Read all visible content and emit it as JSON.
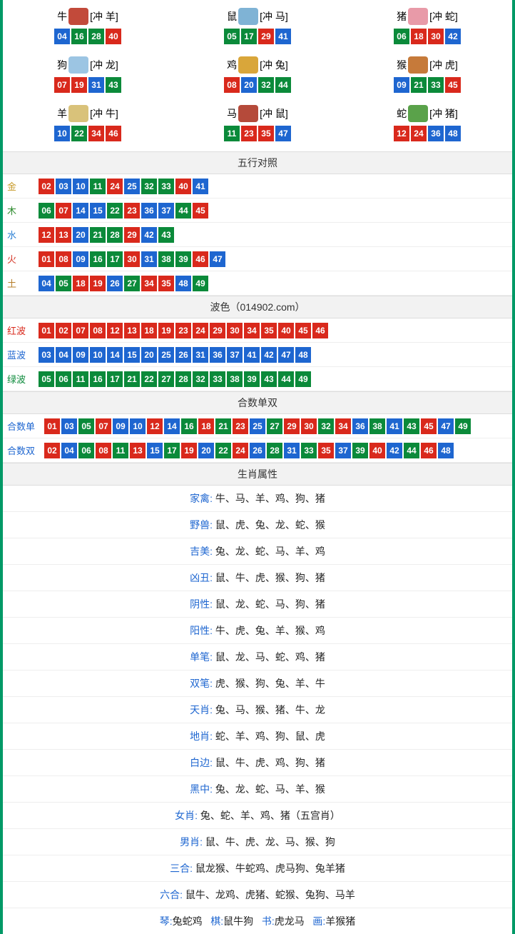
{
  "colors": {
    "red": "#d9291c",
    "blue": "#1e66d0",
    "green": "#0b8a3a",
    "gold": "#c89b2a",
    "wood": "#2e8b2e",
    "water": "#2a7fd4",
    "fire": "#d63a2b",
    "earth": "#b57e2a",
    "redText": "#d9291c",
    "blueText": "#1e66d0",
    "greenText": "#0b8a3a",
    "black": "#000000"
  },
  "zodiac": [
    {
      "name": "牛",
      "clash": "[冲 羊]",
      "icon": "#c24a3a",
      "nums": [
        [
          "04",
          "blue"
        ],
        [
          "16",
          "green"
        ],
        [
          "28",
          "green"
        ],
        [
          "40",
          "red"
        ]
      ]
    },
    {
      "name": "鼠",
      "clash": "[冲 马]",
      "icon": "#7fb3d5",
      "nums": [
        [
          "05",
          "green"
        ],
        [
          "17",
          "green"
        ],
        [
          "29",
          "red"
        ],
        [
          "41",
          "blue"
        ]
      ]
    },
    {
      "name": "猪",
      "clash": "[冲 蛇]",
      "icon": "#e89aa8",
      "nums": [
        [
          "06",
          "green"
        ],
        [
          "18",
          "red"
        ],
        [
          "30",
          "red"
        ],
        [
          "42",
          "blue"
        ]
      ]
    },
    {
      "name": "狗",
      "clash": "[冲 龙]",
      "icon": "#9cc5e3",
      "nums": [
        [
          "07",
          "red"
        ],
        [
          "19",
          "red"
        ],
        [
          "31",
          "blue"
        ],
        [
          "43",
          "green"
        ]
      ]
    },
    {
      "name": "鸡",
      "clash": "[冲 兔]",
      "icon": "#d9a63a",
      "nums": [
        [
          "08",
          "red"
        ],
        [
          "20",
          "blue"
        ],
        [
          "32",
          "green"
        ],
        [
          "44",
          "green"
        ]
      ]
    },
    {
      "name": "猴",
      "clash": "[冲 虎]",
      "icon": "#c67a3a",
      "nums": [
        [
          "09",
          "blue"
        ],
        [
          "21",
          "green"
        ],
        [
          "33",
          "green"
        ],
        [
          "45",
          "red"
        ]
      ]
    },
    {
      "name": "羊",
      "clash": "[冲 牛]",
      "icon": "#d9c27a",
      "nums": [
        [
          "10",
          "blue"
        ],
        [
          "22",
          "green"
        ],
        [
          "34",
          "red"
        ],
        [
          "46",
          "red"
        ]
      ]
    },
    {
      "name": "马",
      "clash": "[冲 鼠]",
      "icon": "#b54a3a",
      "nums": [
        [
          "11",
          "green"
        ],
        [
          "23",
          "red"
        ],
        [
          "35",
          "red"
        ],
        [
          "47",
          "blue"
        ]
      ]
    },
    {
      "name": "蛇",
      "clash": "[冲 猪]",
      "icon": "#5aa24a",
      "nums": [
        [
          "12",
          "red"
        ],
        [
          "24",
          "red"
        ],
        [
          "36",
          "blue"
        ],
        [
          "48",
          "blue"
        ]
      ]
    }
  ],
  "wuxing_header": "五行对照",
  "wuxing": [
    {
      "label": "金",
      "labelColor": "gold",
      "nums": [
        [
          "02",
          "red"
        ],
        [
          "03",
          "blue"
        ],
        [
          "10",
          "blue"
        ],
        [
          "11",
          "green"
        ],
        [
          "24",
          "red"
        ],
        [
          "25",
          "blue"
        ],
        [
          "32",
          "green"
        ],
        [
          "33",
          "green"
        ],
        [
          "40",
          "red"
        ],
        [
          "41",
          "blue"
        ]
      ]
    },
    {
      "label": "木",
      "labelColor": "wood",
      "nums": [
        [
          "06",
          "green"
        ],
        [
          "07",
          "red"
        ],
        [
          "14",
          "blue"
        ],
        [
          "15",
          "blue"
        ],
        [
          "22",
          "green"
        ],
        [
          "23",
          "red"
        ],
        [
          "36",
          "blue"
        ],
        [
          "37",
          "blue"
        ],
        [
          "44",
          "green"
        ],
        [
          "45",
          "red"
        ]
      ]
    },
    {
      "label": "水",
      "labelColor": "water",
      "nums": [
        [
          "12",
          "red"
        ],
        [
          "13",
          "red"
        ],
        [
          "20",
          "blue"
        ],
        [
          "21",
          "green"
        ],
        [
          "28",
          "green"
        ],
        [
          "29",
          "red"
        ],
        [
          "42",
          "blue"
        ],
        [
          "43",
          "green"
        ]
      ]
    },
    {
      "label": "火",
      "labelColor": "fire",
      "nums": [
        [
          "01",
          "red"
        ],
        [
          "08",
          "red"
        ],
        [
          "09",
          "blue"
        ],
        [
          "16",
          "green"
        ],
        [
          "17",
          "green"
        ],
        [
          "30",
          "red"
        ],
        [
          "31",
          "blue"
        ],
        [
          "38",
          "green"
        ],
        [
          "39",
          "green"
        ],
        [
          "46",
          "red"
        ],
        [
          "47",
          "blue"
        ]
      ]
    },
    {
      "label": "土",
      "labelColor": "earth",
      "nums": [
        [
          "04",
          "blue"
        ],
        [
          "05",
          "green"
        ],
        [
          "18",
          "red"
        ],
        [
          "19",
          "red"
        ],
        [
          "26",
          "blue"
        ],
        [
          "27",
          "green"
        ],
        [
          "34",
          "red"
        ],
        [
          "35",
          "red"
        ],
        [
          "48",
          "blue"
        ],
        [
          "49",
          "green"
        ]
      ]
    }
  ],
  "bose_header": "波色（014902.com）",
  "bose": [
    {
      "label": "红波",
      "labelColor": "redText",
      "nums": [
        [
          "01",
          "red"
        ],
        [
          "02",
          "red"
        ],
        [
          "07",
          "red"
        ],
        [
          "08",
          "red"
        ],
        [
          "12",
          "red"
        ],
        [
          "13",
          "red"
        ],
        [
          "18",
          "red"
        ],
        [
          "19",
          "red"
        ],
        [
          "23",
          "red"
        ],
        [
          "24",
          "red"
        ],
        [
          "29",
          "red"
        ],
        [
          "30",
          "red"
        ],
        [
          "34",
          "red"
        ],
        [
          "35",
          "red"
        ],
        [
          "40",
          "red"
        ],
        [
          "45",
          "red"
        ],
        [
          "46",
          "red"
        ]
      ]
    },
    {
      "label": "蓝波",
      "labelColor": "blueText",
      "nums": [
        [
          "03",
          "blue"
        ],
        [
          "04",
          "blue"
        ],
        [
          "09",
          "blue"
        ],
        [
          "10",
          "blue"
        ],
        [
          "14",
          "blue"
        ],
        [
          "15",
          "blue"
        ],
        [
          "20",
          "blue"
        ],
        [
          "25",
          "blue"
        ],
        [
          "26",
          "blue"
        ],
        [
          "31",
          "blue"
        ],
        [
          "36",
          "blue"
        ],
        [
          "37",
          "blue"
        ],
        [
          "41",
          "blue"
        ],
        [
          "42",
          "blue"
        ],
        [
          "47",
          "blue"
        ],
        [
          "48",
          "blue"
        ]
      ]
    },
    {
      "label": "绿波",
      "labelColor": "greenText",
      "nums": [
        [
          "05",
          "green"
        ],
        [
          "06",
          "green"
        ],
        [
          "11",
          "green"
        ],
        [
          "16",
          "green"
        ],
        [
          "17",
          "green"
        ],
        [
          "21",
          "green"
        ],
        [
          "22",
          "green"
        ],
        [
          "27",
          "green"
        ],
        [
          "28",
          "green"
        ],
        [
          "32",
          "green"
        ],
        [
          "33",
          "green"
        ],
        [
          "38",
          "green"
        ],
        [
          "39",
          "green"
        ],
        [
          "43",
          "green"
        ],
        [
          "44",
          "green"
        ],
        [
          "49",
          "green"
        ]
      ]
    }
  ],
  "heshu_header": "合数单双",
  "heshu": [
    {
      "label": "合数单",
      "labelColor": "blueText",
      "nums": [
        [
          "01",
          "red"
        ],
        [
          "03",
          "blue"
        ],
        [
          "05",
          "green"
        ],
        [
          "07",
          "red"
        ],
        [
          "09",
          "blue"
        ],
        [
          "10",
          "blue"
        ],
        [
          "12",
          "red"
        ],
        [
          "14",
          "blue"
        ],
        [
          "16",
          "green"
        ],
        [
          "18",
          "red"
        ],
        [
          "21",
          "green"
        ],
        [
          "23",
          "red"
        ],
        [
          "25",
          "blue"
        ],
        [
          "27",
          "green"
        ],
        [
          "29",
          "red"
        ],
        [
          "30",
          "red"
        ],
        [
          "32",
          "green"
        ],
        [
          "34",
          "red"
        ],
        [
          "36",
          "blue"
        ],
        [
          "38",
          "green"
        ],
        [
          "41",
          "blue"
        ],
        [
          "43",
          "green"
        ],
        [
          "45",
          "red"
        ],
        [
          "47",
          "blue"
        ],
        [
          "49",
          "green"
        ]
      ]
    },
    {
      "label": "合数双",
      "labelColor": "blueText",
      "nums": [
        [
          "02",
          "red"
        ],
        [
          "04",
          "blue"
        ],
        [
          "06",
          "green"
        ],
        [
          "08",
          "red"
        ],
        [
          "11",
          "green"
        ],
        [
          "13",
          "red"
        ],
        [
          "15",
          "blue"
        ],
        [
          "17",
          "green"
        ],
        [
          "19",
          "red"
        ],
        [
          "20",
          "blue"
        ],
        [
          "22",
          "green"
        ],
        [
          "24",
          "red"
        ],
        [
          "26",
          "blue"
        ],
        [
          "28",
          "green"
        ],
        [
          "31",
          "blue"
        ],
        [
          "33",
          "green"
        ],
        [
          "35",
          "red"
        ],
        [
          "37",
          "blue"
        ],
        [
          "39",
          "green"
        ],
        [
          "40",
          "red"
        ],
        [
          "42",
          "blue"
        ],
        [
          "44",
          "green"
        ],
        [
          "46",
          "red"
        ],
        [
          "48",
          "blue"
        ]
      ]
    }
  ],
  "attr_header": "生肖属性",
  "attrs": [
    {
      "key": "家禽",
      "keyColor": "blueText",
      "val": "牛、马、羊、鸡、狗、猪"
    },
    {
      "key": "野兽",
      "keyColor": "blueText",
      "val": "鼠、虎、兔、龙、蛇、猴"
    },
    {
      "key": "吉美",
      "keyColor": "blueText",
      "val": "兔、龙、蛇、马、羊、鸡"
    },
    {
      "key": "凶丑",
      "keyColor": "blueText",
      "val": "鼠、牛、虎、猴、狗、猪"
    },
    {
      "key": "阴性",
      "keyColor": "blueText",
      "val": "鼠、龙、蛇、马、狗、猪"
    },
    {
      "key": "阳性",
      "keyColor": "blueText",
      "val": "牛、虎、兔、羊、猴、鸡"
    },
    {
      "key": "单笔",
      "keyColor": "blueText",
      "val": "鼠、龙、马、蛇、鸡、猪"
    },
    {
      "key": "双笔",
      "keyColor": "blueText",
      "val": "虎、猴、狗、兔、羊、牛"
    },
    {
      "key": "天肖",
      "keyColor": "blueText",
      "val": "兔、马、猴、猪、牛、龙"
    },
    {
      "key": "地肖",
      "keyColor": "blueText",
      "val": "蛇、羊、鸡、狗、鼠、虎"
    },
    {
      "key": "白边",
      "keyColor": "blueText",
      "val": "鼠、牛、虎、鸡、狗、猪"
    },
    {
      "key": "黑中",
      "keyColor": "blueText",
      "val": "兔、龙、蛇、马、羊、猴"
    },
    {
      "key": "女肖",
      "keyColor": "blueText",
      "val": "兔、蛇、羊、鸡、猪（五宫肖）"
    },
    {
      "key": "男肖",
      "keyColor": "blueText",
      "val": "鼠、牛、虎、龙、马、猴、狗"
    },
    {
      "key": "三合",
      "keyColor": "blueText",
      "val": "鼠龙猴、牛蛇鸡、虎马狗、兔羊猪"
    },
    {
      "key": "六合",
      "keyColor": "blueText",
      "val": "鼠牛、龙鸡、虎猪、蛇猴、兔狗、马羊"
    }
  ],
  "bottom_row": [
    {
      "key": "琴",
      "val": "兔蛇鸡"
    },
    {
      "key": "棋",
      "val": "鼠牛狗"
    },
    {
      "key": "书",
      "val": "虎龙马"
    },
    {
      "key": "画",
      "val": "羊猴猪"
    }
  ]
}
